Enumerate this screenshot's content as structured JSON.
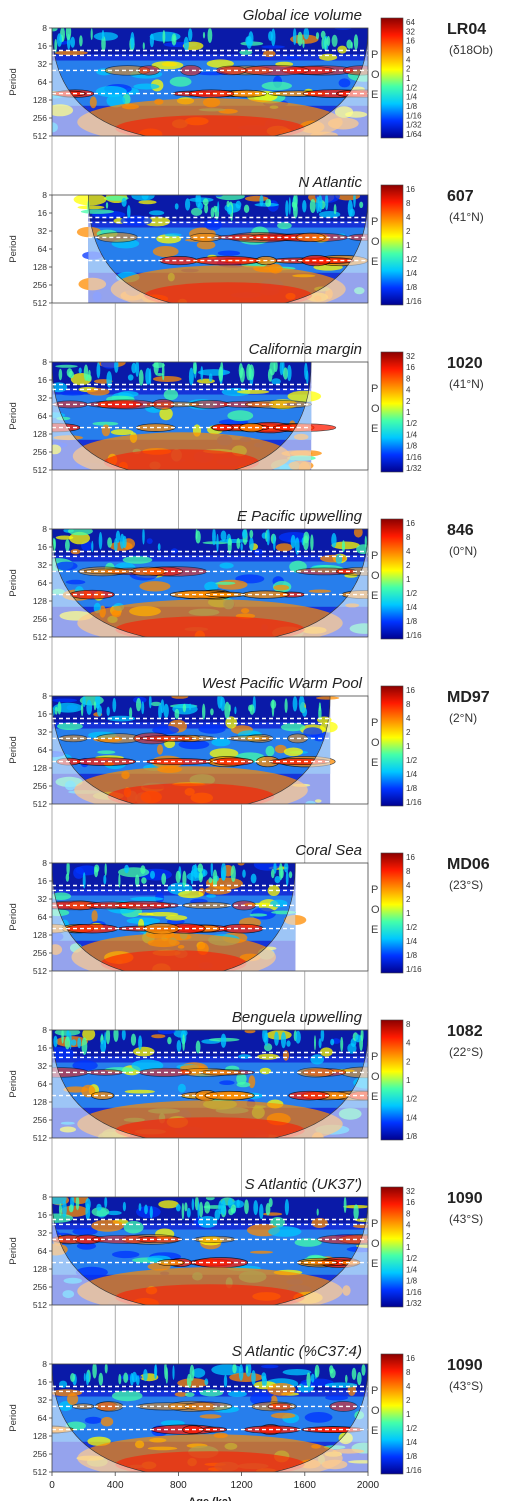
{
  "chart_data": {
    "type": "heatmap",
    "xlabel": "Age (ka)",
    "ylabel": "Period",
    "xlim": [
      0,
      2000
    ],
    "x_ticks": [
      "0",
      "400",
      "800",
      "1200",
      "1600",
      "2000"
    ],
    "x_tick_values": [
      0,
      400,
      800,
      1200,
      1600,
      2000
    ],
    "y_tick_values": [
      8,
      16,
      32,
      64,
      128,
      256,
      512
    ],
    "y_tick_labels": [
      "8",
      "16",
      "32",
      "64",
      "128",
      "256",
      "512"
    ],
    "poe_labels": [
      "P",
      "O",
      "E"
    ],
    "color_scale": [
      "#00008f",
      "#0033ff",
      "#00c8ff",
      "#44ffaa",
      "#ffff00",
      "#ff8c00",
      "#ff1a00",
      "#8b0000"
    ],
    "panels": [
      {
        "title": "Global ice volume",
        "site": "LR04",
        "site_sub": "(δ18Ob)",
        "data_range": [
          0,
          2000
        ],
        "colorbar_ticks": [
          "64",
          "32",
          "16",
          "8",
          "4",
          "2",
          "1",
          "1/2",
          "1/4",
          "1/8",
          "1/16",
          "1/32",
          "1/64"
        ]
      },
      {
        "title": "N Atlantic",
        "site": "607",
        "site_sub": "(41°N)",
        "data_range": [
          230,
          2000
        ],
        "colorbar_ticks": [
          "16",
          "8",
          "4",
          "2",
          "1",
          "1/2",
          "1/4",
          "1/8",
          "1/16"
        ]
      },
      {
        "title": "California margin",
        "site": "1020",
        "site_sub": "(41°N)",
        "data_range": [
          0,
          1640
        ],
        "colorbar_ticks": [
          "32",
          "16",
          "8",
          "4",
          "2",
          "1",
          "1/2",
          "1/4",
          "1/8",
          "1/16",
          "1/32"
        ]
      },
      {
        "title": "E Pacific upwelling",
        "site": "846",
        "site_sub": "(0°N)",
        "data_range": [
          0,
          2000
        ],
        "colorbar_ticks": [
          "16",
          "8",
          "4",
          "2",
          "1",
          "1/2",
          "1/4",
          "1/8",
          "1/16"
        ]
      },
      {
        "title": "West Pacific Warm Pool",
        "site": "MD97",
        "site_sub": "(2°N)",
        "data_range": [
          0,
          1760
        ],
        "colorbar_ticks": [
          "16",
          "8",
          "4",
          "2",
          "1",
          "1/2",
          "1/4",
          "1/8",
          "1/16"
        ]
      },
      {
        "title": "Coral Sea",
        "site": "MD06",
        "site_sub": "(23°S)",
        "data_range": [
          0,
          1540
        ],
        "colorbar_ticks": [
          "16",
          "8",
          "4",
          "2",
          "1",
          "1/2",
          "1/4",
          "1/8",
          "1/16"
        ]
      },
      {
        "title": "Benguela upwelling",
        "site": "1082",
        "site_sub": "(22°S)",
        "data_range": [
          0,
          2000
        ],
        "colorbar_ticks": [
          "8",
          "4",
          "2",
          "1",
          "1/2",
          "1/4",
          "1/8"
        ]
      },
      {
        "title": "S Atlantic (UK37')",
        "site": "1090",
        "site_sub": "(43°S)",
        "data_range": [
          0,
          2000
        ],
        "colorbar_ticks": [
          "32",
          "16",
          "8",
          "4",
          "2",
          "1",
          "1/2",
          "1/4",
          "1/8",
          "1/16",
          "1/32"
        ]
      },
      {
        "title": "S Atlantic (%C37:4)",
        "site": "1090",
        "site_sub": "(43°S)",
        "data_range": [
          0,
          2000
        ],
        "colorbar_ticks": [
          "16",
          "8",
          "4",
          "2",
          "1",
          "1/2",
          "1/4",
          "1/8",
          "1/16"
        ]
      }
    ]
  }
}
